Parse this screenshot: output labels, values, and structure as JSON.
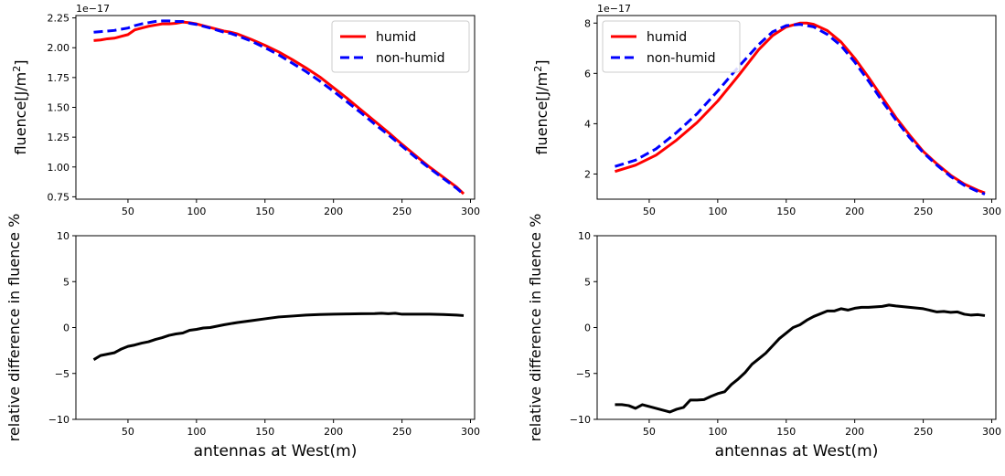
{
  "chart_data": [
    {
      "id": "top-left",
      "type": "line",
      "title": "",
      "xlabel": "",
      "ylabel": "fluence[J/m$^2$]",
      "ylabel_text": "fluence[J/m",
      "ylabel_sup": "2",
      "ylabel_end": "]",
      "offset_label": "1e−17",
      "xlim": [
        12,
        303
      ],
      "ylim": [
        0.73,
        2.27
      ],
      "xticks": [
        50,
        100,
        150,
        200,
        250,
        300
      ],
      "xtick_labels": [
        "50",
        "100",
        "150",
        "200",
        "250",
        "300"
      ],
      "yticks": [
        0.75,
        1.0,
        1.25,
        1.5,
        1.75,
        2.0,
        2.25
      ],
      "ytick_labels": [
        "0.75",
        "1.00",
        "1.25",
        "1.50",
        "1.75",
        "2.00",
        "2.25"
      ],
      "legend": {
        "placement": "top-right",
        "entries": [
          "humid",
          "non-humid"
        ]
      },
      "grid": false,
      "series": [
        {
          "name": "humid",
          "color": "#ff0000",
          "style": "solid",
          "x": [
            25,
            30,
            35,
            40,
            45,
            50,
            55,
            60,
            65,
            70,
            75,
            80,
            85,
            90,
            95,
            100,
            110,
            120,
            125,
            130,
            140,
            150,
            160,
            170,
            180,
            190,
            200,
            210,
            220,
            230,
            240,
            250,
            260,
            270,
            280,
            290,
            295
          ],
          "y": [
            2.06,
            2.065,
            2.075,
            2.08,
            2.095,
            2.11,
            2.15,
            2.165,
            2.18,
            2.19,
            2.2,
            2.2,
            2.205,
            2.215,
            2.21,
            2.2,
            2.17,
            2.14,
            2.13,
            2.115,
            2.07,
            2.02,
            1.965,
            1.9,
            1.83,
            1.755,
            1.665,
            1.575,
            1.48,
            1.385,
            1.29,
            1.19,
            1.095,
            1.0,
            0.915,
            0.83,
            0.775
          ]
        },
        {
          "name": "non-humid",
          "color": "#0000ff",
          "style": "dashed",
          "x": [
            25,
            30,
            35,
            40,
            45,
            50,
            55,
            60,
            65,
            70,
            75,
            80,
            85,
            90,
            95,
            100,
            110,
            120,
            125,
            130,
            140,
            150,
            160,
            170,
            180,
            190,
            200,
            210,
            220,
            230,
            240,
            250,
            260,
            270,
            280,
            290,
            295
          ],
          "y": [
            2.13,
            2.135,
            2.14,
            2.145,
            2.155,
            2.165,
            2.185,
            2.2,
            2.21,
            2.22,
            2.225,
            2.225,
            2.22,
            2.22,
            2.205,
            2.195,
            2.165,
            2.13,
            2.12,
            2.1,
            2.055,
            2.0,
            1.94,
            1.87,
            1.8,
            1.72,
            1.635,
            1.545,
            1.455,
            1.36,
            1.27,
            1.175,
            1.08,
            0.99,
            0.905,
            0.82,
            0.77
          ]
        }
      ]
    },
    {
      "id": "top-right",
      "type": "line",
      "title": "",
      "xlabel": "",
      "ylabel": "fluence[J/m$^2$]",
      "ylabel_text": "fluence[J/m",
      "ylabel_sup": "2",
      "ylabel_end": "]",
      "offset_label": "1e−17",
      "xlim": [
        12,
        303
      ],
      "ylim": [
        1.0,
        8.3
      ],
      "xticks": [
        50,
        100,
        150,
        200,
        250,
        300
      ],
      "xtick_labels": [
        "50",
        "100",
        "150",
        "200",
        "250",
        "300"
      ],
      "yticks": [
        2,
        4,
        6,
        8
      ],
      "ytick_labels": [
        "2",
        "4",
        "6",
        "8"
      ],
      "legend": {
        "placement": "top-left",
        "entries": [
          "humid",
          "non-humid"
        ]
      },
      "grid": false,
      "series": [
        {
          "name": "humid",
          "color": "#ff0000",
          "style": "solid",
          "x": [
            25,
            40,
            55,
            70,
            85,
            100,
            115,
            130,
            140,
            150,
            160,
            165,
            170,
            180,
            190,
            200,
            210,
            220,
            230,
            240,
            250,
            260,
            270,
            280,
            290,
            295
          ],
          "y": [
            2.1,
            2.35,
            2.75,
            3.35,
            4.05,
            4.9,
            5.9,
            6.95,
            7.5,
            7.85,
            8.0,
            8.0,
            7.95,
            7.7,
            7.25,
            6.6,
            5.85,
            5.05,
            4.25,
            3.55,
            2.9,
            2.4,
            1.95,
            1.6,
            1.35,
            1.25
          ]
        },
        {
          "name": "non-humid",
          "color": "#0000ff",
          "style": "dashed",
          "x": [
            25,
            40,
            55,
            70,
            85,
            100,
            115,
            130,
            140,
            150,
            160,
            165,
            170,
            180,
            190,
            200,
            210,
            220,
            230,
            240,
            250,
            260,
            270,
            280,
            290,
            295
          ],
          "y": [
            2.3,
            2.55,
            3.0,
            3.65,
            4.4,
            5.3,
            6.25,
            7.15,
            7.65,
            7.9,
            7.95,
            7.9,
            7.85,
            7.55,
            7.1,
            6.45,
            5.7,
            4.9,
            4.15,
            3.45,
            2.85,
            2.35,
            1.9,
            1.55,
            1.3,
            1.2
          ]
        }
      ]
    },
    {
      "id": "bottom-left",
      "type": "line",
      "title": "",
      "xlabel": "antennas at West(m)",
      "ylabel": "relative difference in fluence %",
      "xlim": [
        12,
        303
      ],
      "ylim": [
        -10,
        10
      ],
      "xticks": [
        50,
        100,
        150,
        200,
        250,
        300
      ],
      "xtick_labels": [
        "50",
        "100",
        "150",
        "200",
        "250",
        "300"
      ],
      "yticks": [
        -10,
        -5,
        0,
        5,
        10
      ],
      "ytick_labels": [
        "−10",
        "−5",
        "0",
        "5",
        "10"
      ],
      "grid": false,
      "series": [
        {
          "name": "",
          "color": "#000000",
          "style": "solid",
          "x": [
            25,
            30,
            35,
            40,
            45,
            50,
            55,
            60,
            65,
            70,
            75,
            80,
            85,
            90,
            95,
            100,
            105,
            110,
            120,
            130,
            140,
            150,
            160,
            170,
            180,
            190,
            200,
            210,
            220,
            230,
            235,
            240,
            245,
            250,
            260,
            270,
            280,
            290,
            295
          ],
          "y": [
            -3.5,
            -3.05,
            -2.9,
            -2.75,
            -2.35,
            -2.05,
            -1.9,
            -1.7,
            -1.55,
            -1.3,
            -1.1,
            -0.85,
            -0.7,
            -0.6,
            -0.3,
            -0.2,
            -0.05,
            0.0,
            0.3,
            0.55,
            0.75,
            0.95,
            1.15,
            1.25,
            1.35,
            1.42,
            1.46,
            1.48,
            1.5,
            1.52,
            1.55,
            1.5,
            1.55,
            1.45,
            1.45,
            1.45,
            1.42,
            1.35,
            1.3
          ]
        }
      ]
    },
    {
      "id": "bottom-right",
      "type": "line",
      "title": "",
      "xlabel": "antennas at West(m)",
      "ylabel": "relative difference in fluence %",
      "xlim": [
        12,
        303
      ],
      "ylim": [
        -10,
        10
      ],
      "xticks": [
        50,
        100,
        150,
        200,
        250,
        300
      ],
      "xtick_labels": [
        "50",
        "100",
        "150",
        "200",
        "250",
        "300"
      ],
      "yticks": [
        -10,
        -5,
        0,
        5,
        10
      ],
      "ytick_labels": [
        "−10",
        "−5",
        "0",
        "5",
        "10"
      ],
      "grid": false,
      "series": [
        {
          "name": "",
          "color": "#000000",
          "style": "solid",
          "x": [
            25,
            30,
            35,
            40,
            45,
            50,
            55,
            60,
            65,
            70,
            75,
            80,
            85,
            90,
            95,
            100,
            105,
            110,
            115,
            120,
            125,
            130,
            135,
            140,
            145,
            150,
            155,
            160,
            165,
            170,
            175,
            180,
            185,
            190,
            195,
            200,
            205,
            210,
            215,
            220,
            225,
            230,
            240,
            250,
            260,
            265,
            270,
            275,
            280,
            285,
            290,
            295
          ],
          "y": [
            -8.4,
            -8.4,
            -8.5,
            -8.8,
            -8.4,
            -8.6,
            -8.8,
            -9.0,
            -9.2,
            -8.9,
            -8.7,
            -7.9,
            -7.9,
            -7.85,
            -7.5,
            -7.2,
            -7.0,
            -6.2,
            -5.6,
            -4.9,
            -4.0,
            -3.4,
            -2.8,
            -2.0,
            -1.2,
            -0.6,
            0.0,
            0.3,
            0.8,
            1.2,
            1.5,
            1.8,
            1.8,
            2.05,
            1.9,
            2.1,
            2.2,
            2.2,
            2.25,
            2.3,
            2.45,
            2.35,
            2.2,
            2.05,
            1.7,
            1.75,
            1.65,
            1.7,
            1.45,
            1.35,
            1.4,
            1.3
          ]
        }
      ]
    }
  ]
}
